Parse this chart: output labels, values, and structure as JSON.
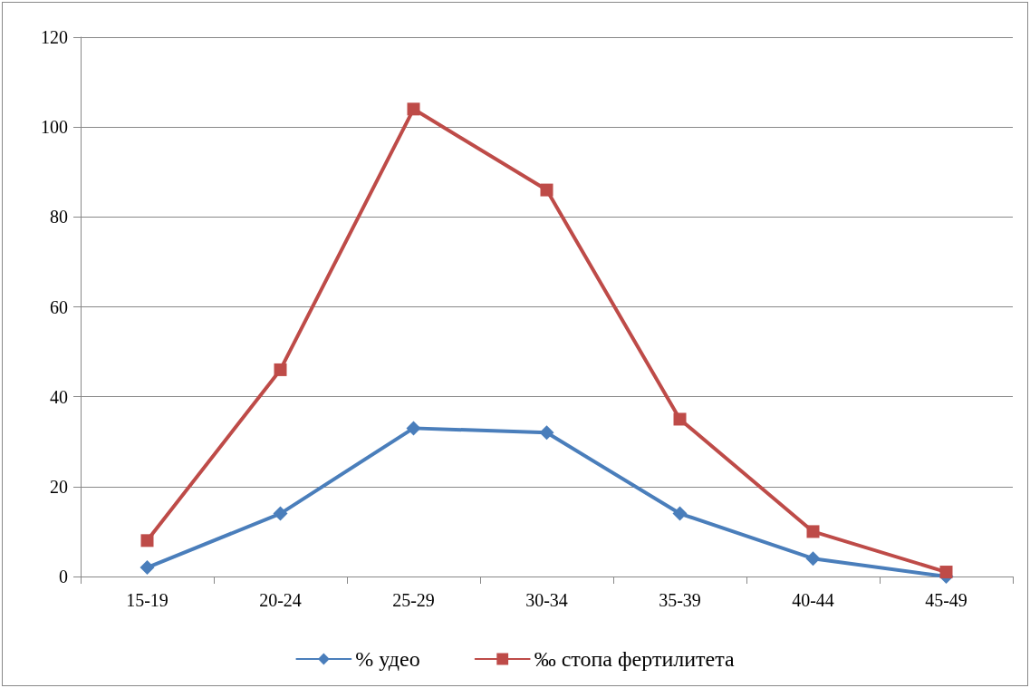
{
  "chart_data": {
    "type": "line",
    "categories": [
      "15-19",
      "20-24",
      "25-29",
      "30-34",
      "35-39",
      "40-44",
      "45-49"
    ],
    "series": [
      {
        "name": "% удео",
        "color": "#4a7ebb",
        "marker": "diamond",
        "values": [
          2,
          14,
          33,
          32,
          14,
          4,
          0
        ]
      },
      {
        "name": "‰ стопа фертилитета",
        "color": "#be4b48",
        "marker": "square",
        "values": [
          8,
          46,
          104,
          86,
          35,
          10,
          1
        ]
      }
    ],
    "ylim": [
      0,
      120
    ],
    "yticks": [
      0,
      20,
      40,
      60,
      80,
      100,
      120
    ],
    "grid": "y",
    "legend": "bottom",
    "line_style": "solid"
  }
}
